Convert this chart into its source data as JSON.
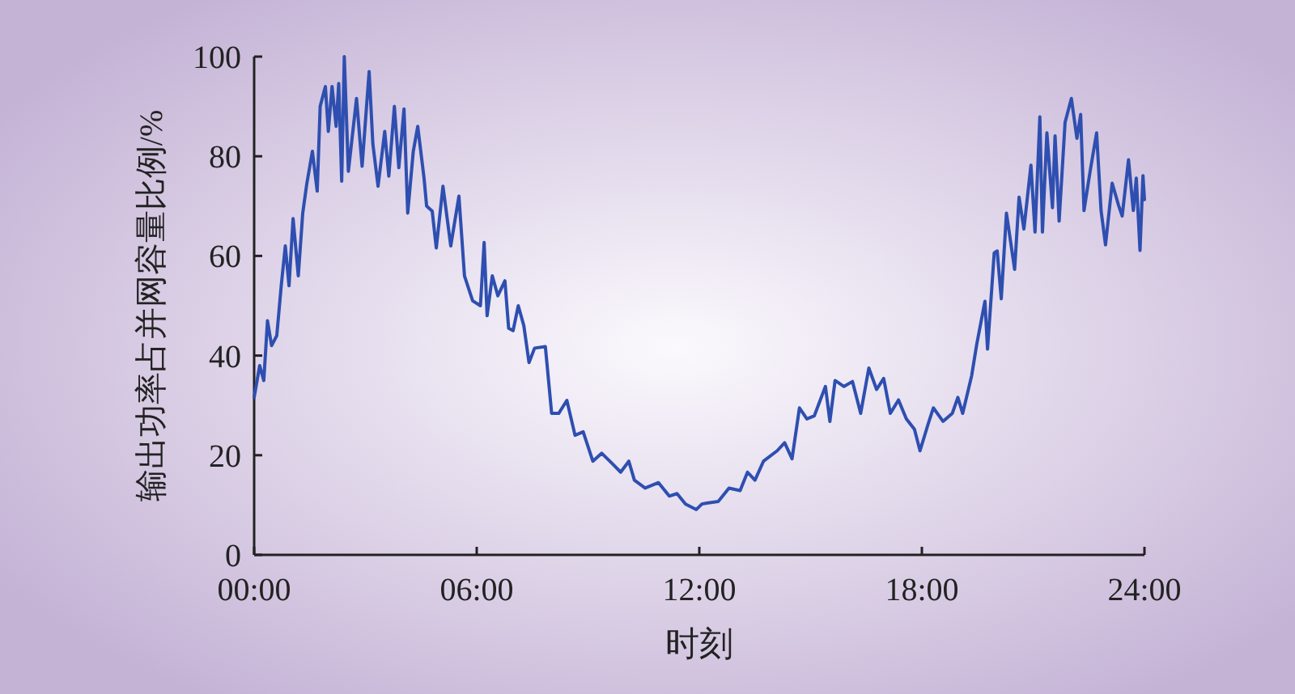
{
  "chart_data": {
    "type": "line",
    "xlabel": "时刻",
    "ylabel": "输出功率占并网容量比例/%",
    "xlim": [
      0,
      24
    ],
    "xticks": [
      {
        "value": 0,
        "label": "00:00"
      },
      {
        "value": 6,
        "label": "06:00"
      },
      {
        "value": 12,
        "label": "12:00"
      },
      {
        "value": 18,
        "label": "18:00"
      },
      {
        "value": 24,
        "label": "24:00"
      }
    ],
    "ylim": [
      0,
      100
    ],
    "yticks": [
      0,
      20,
      40,
      60,
      80,
      100
    ],
    "grid": false,
    "marker": "none",
    "line_style": "solid",
    "series": [
      {
        "color": "#2e4fb0",
        "x": [
          0.0,
          0.15,
          0.26,
          0.36,
          0.47,
          0.61,
          0.73,
          0.84,
          0.94,
          1.05,
          1.19,
          1.31,
          1.42,
          1.57,
          1.7,
          1.78,
          1.92,
          2.0,
          2.1,
          2.21,
          2.28,
          2.36,
          2.43,
          2.54,
          2.76,
          2.91,
          3.1,
          3.2,
          3.34,
          3.52,
          3.63,
          3.78,
          3.9,
          4.04,
          4.14,
          4.29,
          4.41,
          4.58,
          4.65,
          4.8,
          4.91,
          5.09,
          5.3,
          5.52,
          5.67,
          5.89,
          6.1,
          6.2,
          6.28,
          6.42,
          6.57,
          6.76,
          6.86,
          6.98,
          7.12,
          7.27,
          7.41,
          7.56,
          7.85,
          8.02,
          8.21,
          8.43,
          8.65,
          8.87,
          9.13,
          9.37,
          9.67,
          9.88,
          10.1,
          10.25,
          10.54,
          10.9,
          11.19,
          11.4,
          11.63,
          11.92,
          12.07,
          12.2,
          12.51,
          12.8,
          13.1,
          13.3,
          13.5,
          13.73,
          14.1,
          14.3,
          14.5,
          14.7,
          14.9,
          15.1,
          15.4,
          15.52,
          15.66,
          15.9,
          16.13,
          16.35,
          16.57,
          16.78,
          16.97,
          17.15,
          17.37,
          17.58,
          17.8,
          17.95,
          18.17,
          18.31,
          18.57,
          18.82,
          18.97,
          19.1,
          19.34,
          19.48,
          19.7,
          19.77,
          19.95,
          20.03,
          20.14,
          20.28,
          20.5,
          20.62,
          20.75,
          20.94,
          21.05,
          21.18,
          21.25,
          21.37,
          21.52,
          21.59,
          21.7,
          21.86,
          22.03,
          22.18,
          22.28,
          22.37,
          22.54,
          22.71,
          22.83,
          22.95,
          23.13,
          23.3,
          23.4,
          23.57,
          23.7,
          23.78,
          23.88,
          23.96,
          24.0
        ],
        "values": [
          31.6,
          38,
          35,
          47,
          42,
          44,
          54,
          62,
          54,
          67.5,
          56,
          68.6,
          74.5,
          81,
          73,
          90,
          94,
          85,
          94,
          86,
          94.6,
          75,
          100,
          77,
          91.6,
          78,
          97,
          82.5,
          74,
          85,
          76,
          90,
          77.7,
          89.5,
          68.6,
          81,
          86,
          75.6,
          70,
          69,
          61.6,
          74,
          62,
          72,
          56,
          51,
          50,
          62.7,
          48,
          56,
          52,
          55,
          45.5,
          45,
          50,
          46,
          38.6,
          41.5,
          41.8,
          28.4,
          28.4,
          31,
          24,
          24.7,
          18.8,
          20.4,
          18.2,
          16.6,
          18.8,
          15,
          13.4,
          14.5,
          11.8,
          12.3,
          10.2,
          9.1,
          10.2,
          10.4,
          10.7,
          13.4,
          12.9,
          16.6,
          15,
          18.8,
          20.9,
          22.5,
          19.3,
          29.5,
          27.3,
          27.9,
          33.8,
          26.8,
          35,
          33.8,
          34.8,
          28.4,
          37.5,
          33.2,
          35.4,
          28.4,
          31.1,
          27.3,
          25.2,
          20.9,
          26.3,
          29.5,
          26.8,
          28.4,
          31.6,
          28.4,
          35.9,
          42.3,
          50.9,
          41.3,
          60.6,
          61,
          51.4,
          68.6,
          57.3,
          71.8,
          65.4,
          78.2,
          64.8,
          87.9,
          64.8,
          84.7,
          69.7,
          84.1,
          67,
          86.8,
          91.6,
          83.6,
          88.4,
          69.1,
          77.2,
          84.7,
          69.1,
          62.2,
          74.6,
          70.2,
          68,
          79.3,
          69.1,
          75.6,
          61.1,
          76.1,
          71.3
        ]
      }
    ]
  }
}
